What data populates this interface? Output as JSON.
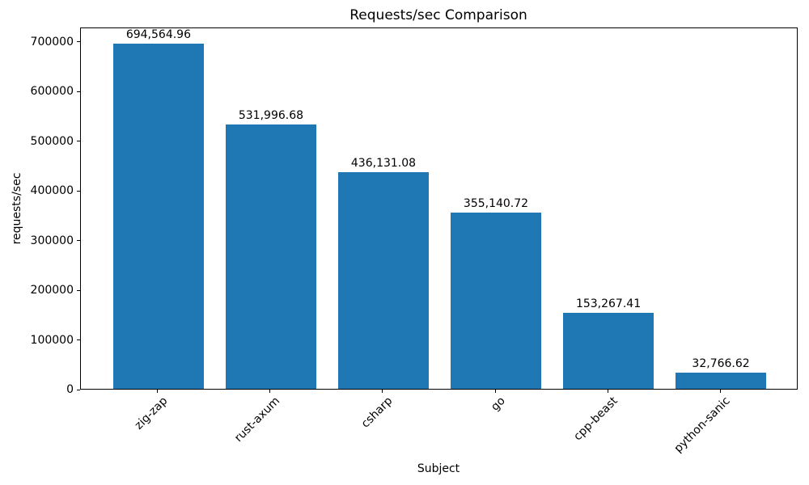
{
  "chart_data": {
    "type": "bar",
    "title": "Requests/sec Comparison",
    "xlabel": "Subject",
    "ylabel": "requests/sec",
    "categories": [
      "zig-zap",
      "rust-axum",
      "csharp",
      "go",
      "cpp-beast",
      "python-sanic"
    ],
    "values": [
      694564.96,
      531996.68,
      436131.08,
      355140.72,
      153267.41,
      32766.62
    ],
    "bar_labels": [
      "694,564.96",
      "531,996.68",
      "436,131.08",
      "355,140.72",
      "153,267.41",
      "32,766.62"
    ],
    "yticks": [
      0,
      100000,
      200000,
      300000,
      400000,
      500000,
      600000,
      700000
    ],
    "ytick_labels": [
      "0",
      "100000",
      "200000",
      "300000",
      "400000",
      "500000",
      "600000",
      "700000"
    ],
    "ylim": [
      0,
      729293
    ],
    "bar_color": "#1f77b4",
    "text_color": "#000000",
    "grid": false,
    "legend_position": "none",
    "x_tick_rotation": 45
  }
}
